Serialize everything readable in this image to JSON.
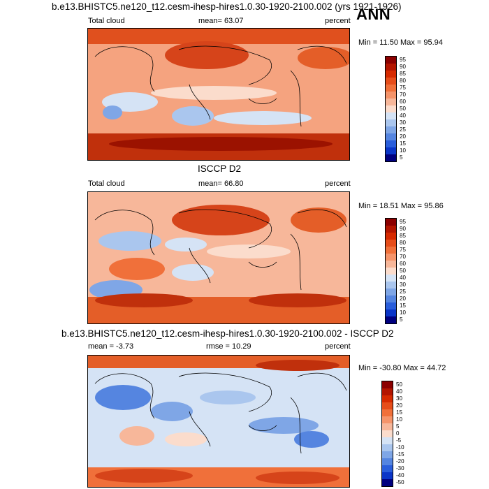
{
  "header": {
    "main_title": "b.e13.BHISTC5.ne120_t12.cesm-ihesp-hires1.0.30-1920-2100.002 (yrs 1921-1926)",
    "season": "ANN"
  },
  "panels": [
    {
      "title": "",
      "left_label": "Total cloud",
      "center_label": "mean=  63.07",
      "right_label": "percent",
      "minmax": "Min =  11.50 Max =  95.94",
      "colorbar": {
        "levels": [
          "95",
          "90",
          "85",
          "80",
          "75",
          "70",
          "60",
          "50",
          "40",
          "30",
          "25",
          "20",
          "15",
          "10",
          "5"
        ],
        "colors": [
          "#8b0000",
          "#b31500",
          "#d62a00",
          "#e64d1a",
          "#f0703a",
          "#f5946a",
          "#f7b79a",
          "#fbdccc",
          "#d5e3f5",
          "#aac6ee",
          "#7fa6e6",
          "#5585e0",
          "#2a5edb",
          "#0a35c8",
          "#00007f"
        ]
      }
    },
    {
      "title": "ISCCP D2",
      "left_label": "Total cloud",
      "center_label": "mean=  66.80",
      "right_label": "percent",
      "minmax": "Min =  18.51 Max =  95.86",
      "colorbar": {
        "levels": [
          "95",
          "90",
          "85",
          "80",
          "75",
          "70",
          "60",
          "50",
          "40",
          "30",
          "25",
          "20",
          "15",
          "10",
          "5"
        ],
        "colors": [
          "#8b0000",
          "#b31500",
          "#d62a00",
          "#e64d1a",
          "#f0703a",
          "#f5946a",
          "#f7b79a",
          "#fbdccc",
          "#d5e3f5",
          "#aac6ee",
          "#7fa6e6",
          "#5585e0",
          "#2a5edb",
          "#0a35c8",
          "#00007f"
        ]
      }
    },
    {
      "title": "b.e13.BHISTC5.ne120_t12.cesm-ihesp-hires1.0.30-1920-2100.002 - ISCCP D2",
      "left_label": "mean =  -3.73",
      "center_label": "rmse =  10.29",
      "right_label": "percent",
      "minmax": "Min = -30.80 Max =  44.72",
      "colorbar": {
        "levels": [
          "50",
          "40",
          "30",
          "20",
          "15",
          "10",
          "5",
          "0",
          "-5",
          "-10",
          "-15",
          "-20",
          "-30",
          "-40",
          "-50"
        ],
        "colors": [
          "#8b0000",
          "#b31500",
          "#d62a00",
          "#e64d1a",
          "#f0703a",
          "#f5946a",
          "#f7b79a",
          "#fbdccc",
          "#d5e3f5",
          "#aac6ee",
          "#7fa6e6",
          "#5585e0",
          "#2a5edb",
          "#0a35c8",
          "#00007f"
        ]
      }
    }
  ],
  "chart_data": [
    {
      "type": "heatmap",
      "title": "b.e13.BHISTC5.ne120_t12.cesm-ihesp-hires1.0.30-1920-2100.002 (yrs 1921-1926)",
      "variable": "Total cloud",
      "units": "percent",
      "mean": 63.07,
      "min": 11.5,
      "max": 95.94,
      "levels": [
        5,
        10,
        15,
        20,
        25,
        30,
        40,
        50,
        60,
        70,
        75,
        80,
        85,
        90,
        95
      ]
    },
    {
      "type": "heatmap",
      "title": "ISCCP D2",
      "variable": "Total cloud",
      "units": "percent",
      "mean": 66.8,
      "min": 18.51,
      "max": 95.86,
      "levels": [
        5,
        10,
        15,
        20,
        25,
        30,
        40,
        50,
        60,
        70,
        75,
        80,
        85,
        90,
        95
      ]
    },
    {
      "type": "heatmap",
      "title": "b.e13.BHISTC5.ne120_t12.cesm-ihesp-hires1.0.30-1920-2100.002 - ISCCP D2",
      "units": "percent",
      "mean": -3.73,
      "rmse": 10.29,
      "min": -30.8,
      "max": 44.72,
      "levels": [
        -50,
        -40,
        -30,
        -20,
        -15,
        -10,
        -5,
        0,
        5,
        10,
        15,
        20,
        30,
        40,
        50
      ]
    }
  ]
}
